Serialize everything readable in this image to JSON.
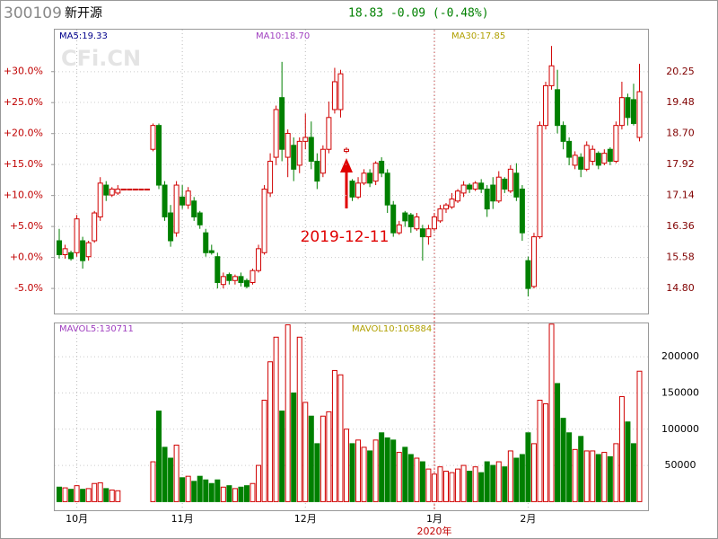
{
  "header": {
    "code": "300109",
    "name": "新开源",
    "quote": "18.83 -0.09 (-0.48%)",
    "quote_color": "#008000",
    "watermark": "CFi.CN"
  },
  "chart_data": [
    {
      "type": "candlestick",
      "up_color": "#d00000",
      "down_color": "#008000",
      "grid": true,
      "ma_labels": [
        {
          "text": "MA5:19.33",
          "color": "#00008b"
        },
        {
          "text": "MA10:18.70",
          "color": "#a040c0"
        },
        {
          "text": "MA30:17.85",
          "color": "#b0a000"
        }
      ],
      "annotation": "2019-12-11",
      "categories": [
        null,
        null,
        null,
        "10月",
        null,
        null,
        null,
        null,
        null,
        null,
        null,
        null,
        null,
        null,
        null,
        null,
        null,
        null,
        null,
        null,
        null,
        "11月",
        null,
        null,
        null,
        null,
        null,
        null,
        null,
        null,
        null,
        null,
        null,
        null,
        null,
        null,
        null,
        null,
        null,
        null,
        null,
        null,
        "12月",
        null,
        null,
        null,
        null,
        null,
        null,
        null,
        null,
        null,
        null,
        null,
        null,
        null,
        null,
        null,
        null,
        null,
        null,
        null,
        null,
        null,
        "1月",
        null,
        null,
        null,
        null,
        null,
        null,
        null,
        null,
        null,
        null,
        null,
        null,
        null,
        null,
        null,
        "2月",
        null,
        null,
        null,
        null,
        null,
        null,
        null,
        null,
        null,
        null,
        null,
        null,
        null,
        null,
        null,
        null,
        null,
        null,
        null
      ],
      "ohlc": [
        [
          16.0,
          16.3,
          15.55,
          15.65
        ],
        [
          15.65,
          15.9,
          15.55,
          15.8
        ],
        [
          15.7,
          15.75,
          15.5,
          15.55
        ],
        [
          15.7,
          16.65,
          15.6,
          16.55
        ],
        [
          16.0,
          16.1,
          15.3,
          15.5
        ],
        [
          15.6,
          16.0,
          15.5,
          15.95
        ],
        [
          16.0,
          16.75,
          15.95,
          16.7
        ],
        [
          16.6,
          17.6,
          16.5,
          17.45
        ],
        [
          17.4,
          17.5,
          17.0,
          17.15
        ],
        [
          17.15,
          17.35,
          17.1,
          17.3
        ],
        [
          17.2,
          17.4,
          17.15,
          17.3
        ],
        [
          17.3,
          17.3,
          17.3,
          17.3
        ],
        [
          17.3,
          17.3,
          17.3,
          17.3
        ],
        [
          17.3,
          17.3,
          17.3,
          17.3
        ],
        [
          17.3,
          17.3,
          17.3,
          17.3
        ],
        [
          17.3,
          17.3,
          17.3,
          17.3
        ],
        [
          18.3,
          18.95,
          18.25,
          18.9
        ],
        [
          18.9,
          18.95,
          17.3,
          17.4
        ],
        [
          17.4,
          17.5,
          16.5,
          16.6
        ],
        [
          16.7,
          16.9,
          15.85,
          16.0
        ],
        [
          16.2,
          17.5,
          16.1,
          17.4
        ],
        [
          17.1,
          17.4,
          16.8,
          16.9
        ],
        [
          16.9,
          17.35,
          16.8,
          17.25
        ],
        [
          17.0,
          17.1,
          16.5,
          16.6
        ],
        [
          16.7,
          16.75,
          16.3,
          16.4
        ],
        [
          16.2,
          16.3,
          15.6,
          15.7
        ],
        [
          15.75,
          15.9,
          15.65,
          15.7
        ],
        [
          15.6,
          15.7,
          14.8,
          14.95
        ],
        [
          14.9,
          15.2,
          14.8,
          15.1
        ],
        [
          15.15,
          15.2,
          14.9,
          15.0
        ],
        [
          15.0,
          15.15,
          14.9,
          15.1
        ],
        [
          15.1,
          15.2,
          14.85,
          14.95
        ],
        [
          15.0,
          15.05,
          14.8,
          14.85
        ],
        [
          14.95,
          15.3,
          14.9,
          15.25
        ],
        [
          15.25,
          15.9,
          15.2,
          15.8
        ],
        [
          15.7,
          17.4,
          15.65,
          17.3
        ],
        [
          17.2,
          18.2,
          17.1,
          18.0
        ],
        [
          18.1,
          19.4,
          17.9,
          19.3
        ],
        [
          19.6,
          20.5,
          18.0,
          18.3
        ],
        [
          18.1,
          18.8,
          17.6,
          18.7
        ],
        [
          18.4,
          18.6,
          17.5,
          17.8
        ],
        [
          17.9,
          18.6,
          17.7,
          18.5
        ],
        [
          18.5,
          19.2,
          18.3,
          18.6
        ],
        [
          18.6,
          19.0,
          17.8,
          18.0
        ],
        [
          18.0,
          18.2,
          17.3,
          17.5
        ],
        [
          17.7,
          18.4,
          17.6,
          18.3
        ],
        [
          18.3,
          19.5,
          18.2,
          19.1
        ],
        [
          19.3,
          20.35,
          19.2,
          20.0
        ],
        [
          19.3,
          20.3,
          19.1,
          20.2
        ],
        [
          18.25,
          18.35,
          18.2,
          18.3
        ],
        [
          17.5,
          17.55,
          17.0,
          17.1
        ],
        [
          17.1,
          17.6,
          17.05,
          17.45
        ],
        [
          17.45,
          17.8,
          17.4,
          17.7
        ],
        [
          17.7,
          17.8,
          17.35,
          17.45
        ],
        [
          17.5,
          18.0,
          17.4,
          17.95
        ],
        [
          18.0,
          18.1,
          17.6,
          17.7
        ],
        [
          17.7,
          17.8,
          16.7,
          16.9
        ],
        [
          16.9,
          17.0,
          16.1,
          16.2
        ],
        [
          16.2,
          16.5,
          16.15,
          16.4
        ],
        [
          16.7,
          16.75,
          16.35,
          16.5
        ],
        [
          16.65,
          16.7,
          16.2,
          16.35
        ],
        [
          16.3,
          16.7,
          16.25,
          16.6
        ],
        [
          16.3,
          16.4,
          15.5,
          16.1
        ],
        [
          16.1,
          16.4,
          15.9,
          16.3
        ],
        [
          16.3,
          16.7,
          16.25,
          16.6
        ],
        [
          16.5,
          16.9,
          16.45,
          16.8
        ],
        [
          16.8,
          16.95,
          16.7,
          16.9
        ],
        [
          16.85,
          17.2,
          16.8,
          17.05
        ],
        [
          17.0,
          17.3,
          16.95,
          17.25
        ],
        [
          17.2,
          17.5,
          17.1,
          17.4
        ],
        [
          17.4,
          17.45,
          17.2,
          17.3
        ],
        [
          17.3,
          17.5,
          17.25,
          17.45
        ],
        [
          17.45,
          17.55,
          17.2,
          17.3
        ],
        [
          17.3,
          17.4,
          16.6,
          16.8
        ],
        [
          17.4,
          17.6,
          16.8,
          17.0
        ],
        [
          17.0,
          17.75,
          16.95,
          17.6
        ],
        [
          17.55,
          17.6,
          17.2,
          17.3
        ],
        [
          17.25,
          17.9,
          17.2,
          17.8
        ],
        [
          17.7,
          17.95,
          17.0,
          17.1
        ],
        [
          17.3,
          17.4,
          16.0,
          16.2
        ],
        [
          15.5,
          15.6,
          14.6,
          14.8
        ],
        [
          14.85,
          16.2,
          14.8,
          16.1
        ],
        [
          16.1,
          19.0,
          16.05,
          18.9
        ],
        [
          18.9,
          20.0,
          18.8,
          19.9
        ],
        [
          19.9,
          20.9,
          19.8,
          20.4
        ],
        [
          19.8,
          20.3,
          18.7,
          18.9
        ],
        [
          18.9,
          19.0,
          18.3,
          18.5
        ],
        [
          18.5,
          18.6,
          17.9,
          18.1
        ],
        [
          17.9,
          18.25,
          17.8,
          18.15
        ],
        [
          18.1,
          18.2,
          17.6,
          17.8
        ],
        [
          17.8,
          18.5,
          17.75,
          18.4
        ],
        [
          18.0,
          18.4,
          17.9,
          18.3
        ],
        [
          18.2,
          18.25,
          17.8,
          17.9
        ],
        [
          17.95,
          18.3,
          17.9,
          18.2
        ],
        [
          18.3,
          18.35,
          17.9,
          18.0
        ],
        [
          18.0,
          19.0,
          17.95,
          18.9
        ],
        [
          18.9,
          20.0,
          18.8,
          19.6
        ],
        [
          19.6,
          19.7,
          18.9,
          19.1
        ],
        [
          19.55,
          19.95,
          18.9,
          18.95
        ],
        [
          18.6,
          20.45,
          18.5,
          19.75
        ]
      ],
      "ylim": [
        14.17,
        21.31
      ],
      "yticks": [
        {
          "value": 14.8,
          "label": "14.80"
        },
        {
          "value": 15.58,
          "label": "15.58"
        },
        {
          "value": 16.36,
          "label": "16.36"
        },
        {
          "value": 17.14,
          "label": "17.14"
        },
        {
          "value": 17.92,
          "label": "17.92"
        },
        {
          "value": 18.7,
          "label": "18.70"
        },
        {
          "value": 19.48,
          "label": "19.48"
        },
        {
          "value": 20.25,
          "label": "20.25"
        }
      ],
      "y2lim": [
        -9.05,
        36.78
      ],
      "y2ticks": [
        {
          "value": -5,
          "label": "-5.0%"
        },
        {
          "value": 0,
          "label": "+0.0%"
        },
        {
          "value": 5,
          "label": "+5.0%"
        },
        {
          "value": 10,
          "label": "+10.0%"
        },
        {
          "value": 15,
          "label": "+15.0%"
        },
        {
          "value": 20,
          "label": "+20.0%"
        },
        {
          "value": 25,
          "label": "+25.0%"
        },
        {
          "value": 30,
          "label": "+30.0%"
        }
      ]
    },
    {
      "type": "volume",
      "grid": true,
      "year_label": "2020年",
      "ma_labels": [
        {
          "text": "MAVOL5:130711",
          "color": "#a040c0"
        },
        {
          "text": "MAVOL10:105884",
          "color": "#b0a000"
        }
      ],
      "values": [
        20000,
        19000,
        17000,
        22000,
        17000,
        18000,
        25000,
        26000,
        18000,
        16000,
        15000,
        0,
        0,
        0,
        0,
        0,
        55000,
        125000,
        75000,
        60000,
        78000,
        33000,
        35000,
        28000,
        35000,
        30000,
        25000,
        30000,
        20000,
        22000,
        18000,
        20000,
        22000,
        25000,
        50000,
        140000,
        193000,
        227000,
        125000,
        244000,
        150000,
        227000,
        137000,
        118000,
        80000,
        118000,
        124000,
        181000,
        175000,
        100000,
        80000,
        85000,
        75000,
        70000,
        85000,
        95000,
        88000,
        85000,
        68000,
        75000,
        65000,
        60000,
        55000,
        45000,
        38000,
        48000,
        42000,
        40000,
        45000,
        50000,
        42000,
        48000,
        40000,
        55000,
        50000,
        55000,
        48000,
        70000,
        60000,
        65000,
        95000,
        80000,
        140000,
        135000,
        245000,
        163000,
        115000,
        95000,
        72000,
        90000,
        70000,
        70000,
        65000,
        68000,
        62000,
        80000,
        145000,
        110000,
        80000,
        180000
      ],
      "ylim": [
        -11900,
        246000
      ],
      "yticks": [
        50000,
        100000,
        150000,
        200000
      ]
    }
  ]
}
